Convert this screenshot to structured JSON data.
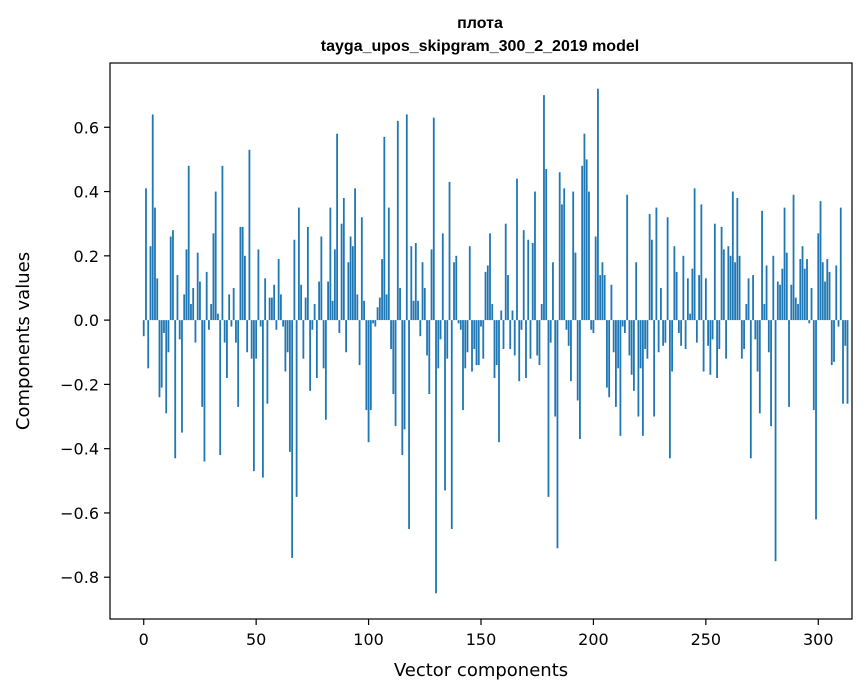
{
  "chart_data": {
    "type": "bar",
    "title_line1": "плота",
    "title_line2": "tayga_upos_skipgram_300_2_2019 model",
    "xlabel": "Vector components",
    "ylabel": "Components values",
    "xlim": [
      -15,
      315
    ],
    "ylim": [
      -0.93,
      0.8
    ],
    "xticks": [
      0,
      50,
      100,
      150,
      200,
      250,
      300
    ],
    "xtick_labels": [
      "0",
      "50",
      "100",
      "150",
      "200",
      "250",
      "300"
    ],
    "yticks": [
      -0.8,
      -0.6,
      -0.4,
      -0.2,
      0.0,
      0.2,
      0.4,
      0.6
    ],
    "ytick_labels": [
      "−0.8",
      "−0.6",
      "−0.4",
      "−0.2",
      "0.0",
      "0.2",
      "0.4",
      "0.6"
    ],
    "grid": false,
    "bar_color": "#1f77b4",
    "values": [
      -0.05,
      0.41,
      -0.15,
      0.23,
      0.64,
      0.35,
      0.13,
      -0.24,
      -0.21,
      -0.04,
      -0.29,
      -0.1,
      0.26,
      0.28,
      -0.43,
      0.14,
      -0.06,
      -0.35,
      0.08,
      0.22,
      0.48,
      0.05,
      0.1,
      -0.07,
      0.21,
      0.12,
      -0.27,
      -0.44,
      0.15,
      -0.03,
      0.05,
      0.27,
      0.4,
      0.02,
      -0.42,
      0.48,
      -0.07,
      -0.18,
      0.08,
      -0.02,
      0.1,
      -0.07,
      -0.27,
      0.29,
      0.29,
      0.2,
      -0.1,
      0.53,
      -0.12,
      -0.47,
      -0.12,
      0.22,
      -0.02,
      -0.49,
      0.13,
      -0.26,
      0.07,
      0.07,
      0.11,
      -0.03,
      0.19,
      0.08,
      -0.02,
      -0.16,
      -0.1,
      -0.41,
      -0.74,
      0.25,
      -0.55,
      0.35,
      0.11,
      -0.12,
      0.07,
      0.29,
      -0.22,
      -0.03,
      0.05,
      -0.18,
      0.12,
      0.26,
      -0.15,
      -0.31,
      0.12,
      0.35,
      0.06,
      0.22,
      0.58,
      -0.04,
      0.3,
      0.38,
      -0.1,
      0.18,
      0.26,
      0.23,
      0.41,
      0.08,
      -0.14,
      0.32,
      0.06,
      -0.28,
      -0.38,
      -0.28,
      -0.01,
      -0.02,
      0.04,
      0.07,
      0.19,
      0.57,
      0.08,
      0.35,
      -0.09,
      -0.23,
      -0.33,
      0.62,
      0.1,
      -0.42,
      -0.34,
      0.64,
      -0.65,
      0.23,
      0.06,
      0.24,
      0.06,
      -0.05,
      0.18,
      0.1,
      -0.11,
      -0.23,
      0.22,
      0.63,
      -0.85,
      -0.15,
      -0.06,
      0.27,
      -0.53,
      -0.12,
      0.43,
      -0.65,
      0.18,
      0.2,
      -0.01,
      -0.03,
      -0.28,
      -0.15,
      -0.1,
      0.23,
      -0.16,
      -0.09,
      -0.14,
      -0.14,
      -0.02,
      -0.12,
      0.15,
      0.17,
      0.27,
      0.05,
      -0.18,
      -0.14,
      -0.38,
      0.03,
      -0.09,
      0.3,
      0.14,
      -0.09,
      0.03,
      -0.11,
      0.44,
      -0.19,
      -0.03,
      0.28,
      -0.18,
      0.25,
      -0.12,
      0.24,
      0.4,
      -0.11,
      -0.14,
      0.05,
      0.7,
      0.47,
      -0.55,
      -0.07,
      0.18,
      -0.3,
      -0.71,
      0.46,
      0.36,
      0.41,
      -0.03,
      -0.08,
      -0.19,
      0.4,
      0.21,
      -0.25,
      -0.37,
      0.48,
      0.58,
      0.5,
      0.4,
      -0.03,
      -0.04,
      0.26,
      0.72,
      0.14,
      0.18,
      0.14,
      -0.21,
      -0.24,
      0.11,
      -0.1,
      -0.27,
      -0.15,
      -0.36,
      -0.02,
      -0.04,
      0.39,
      -0.11,
      -0.17,
      -0.22,
      0.18,
      -0.3,
      -0.15,
      -0.36,
      -0.09,
      -0.12,
      0.33,
      0.25,
      -0.3,
      0.35,
      -0.1,
      0.1,
      -0.08,
      -0.07,
      0.32,
      -0.43,
      -0.16,
      0.23,
      0.15,
      -0.04,
      -0.08,
      0.2,
      -0.09,
      0.13,
      0.02,
      0.16,
      0.41,
      -0.07,
      0.14,
      0.36,
      -0.16,
      0.13,
      -0.08,
      -0.17,
      -0.06,
      0.3,
      -0.18,
      -0.09,
      0.29,
      0.22,
      -0.12,
      0.23,
      0.2,
      0.4,
      0.18,
      0.38,
      0.2,
      -0.12,
      -0.09,
      0.05,
      0.13,
      -0.43,
      0.14,
      -0.06,
      -0.16,
      -0.29,
      0.34,
      0.05,
      0.17,
      -0.1,
      -0.33,
      0.2,
      -0.75,
      0.12,
      0.11,
      0.16,
      0.35,
      0.21,
      -0.27,
      0.11,
      0.39,
      0.07,
      0.05,
      0.19,
      0.23,
      0.16,
      0.19,
      -0.01,
      0.1,
      -0.28,
      -0.62,
      0.27,
      0.37,
      0.18,
      0.12,
      0.19,
      0.15,
      -0.14,
      -0.13,
      0.17,
      -0.02,
      0.35,
      -0.26,
      -0.08,
      -0.26
    ]
  }
}
